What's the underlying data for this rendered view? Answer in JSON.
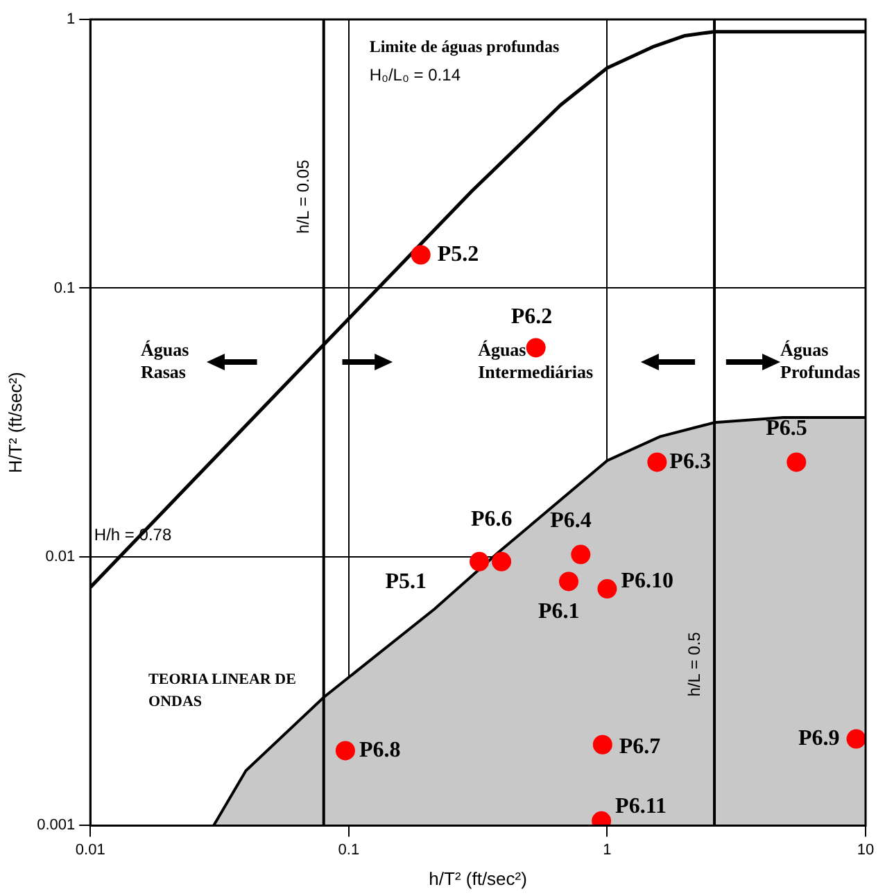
{
  "chart_data": {
    "type": "scatter",
    "xlabel": "h/T² (ft/sec²)",
    "ylabel": "H/T² (ft/sec²)",
    "xlim": [
      0.01,
      10
    ],
    "ylim": [
      0.001,
      1
    ],
    "xticks": [
      0.01,
      0.1,
      1,
      10
    ],
    "yticks": [
      0.001,
      0.01,
      0.1,
      1
    ],
    "log": "xy",
    "grid": true,
    "legend": false,
    "series": [
      {
        "type": "area",
        "marker": "none",
        "color": "#c8c8c8",
        "x": [
          0.03,
          0.04,
          0.08,
          0.215,
          0.38,
          1.0,
          1.6,
          2.6,
          4.8,
          10
        ],
        "values": [
          0.001,
          0.0016,
          0.003,
          0.0064,
          0.0104,
          0.0228,
          0.028,
          0.0316,
          0.033,
          0.033
        ]
      },
      {
        "type": "line",
        "marker": "none",
        "color": "#000000",
        "x": [
          0.01,
          0.1,
          0.3,
          0.5,
          0.66,
          1.0,
          1.5,
          2.0,
          2.6,
          10
        ],
        "values": [
          0.0077,
          0.077,
          0.23,
          0.37,
          0.48,
          0.66,
          0.79,
          0.87,
          0.9,
          0.9
        ]
      },
      {
        "type": "line",
        "marker": "none",
        "name": "h/L = 0.05",
        "color": "#000000",
        "x": [
          0.08,
          0.08
        ],
        "values": [
          0.001,
          1
        ]
      },
      {
        "type": "line",
        "marker": "none",
        "name": "h/L = 0.5",
        "color": "#000000",
        "x": [
          2.6,
          2.6
        ],
        "values": [
          0.001,
          1
        ]
      },
      {
        "marker": "circle",
        "color": "#ff0000",
        "x": [
          0.19,
          0.53,
          1.56,
          5.4,
          0.39,
          0.32,
          0.79,
          0.71,
          1.0,
          0.96,
          0.95,
          0.097,
          9.2
        ],
        "values": [
          0.133,
          0.06,
          0.0225,
          0.0225,
          0.0096,
          0.0096,
          0.0102,
          0.0081,
          0.0076,
          0.002,
          0.00104,
          0.0019,
          0.0021
        ]
      }
    ],
    "annotations": [
      {
        "text": "P5.2",
        "x": 0.19,
        "y": 0.133
      },
      {
        "text": "P6.2",
        "x": 0.53,
        "y": 0.06
      },
      {
        "text": "P6.3",
        "x": 1.56,
        "y": 0.0225
      },
      {
        "text": "P6.5",
        "x": 5.4,
        "y": 0.0225
      },
      {
        "text": "P6.6",
        "x": 0.39,
        "y": 0.0096
      },
      {
        "text": "P5.1",
        "x": 0.32,
        "y": 0.0096
      },
      {
        "text": "P6.4",
        "x": 0.79,
        "y": 0.0102
      },
      {
        "text": "P6.1",
        "x": 0.71,
        "y": 0.0081
      },
      {
        "text": "P6.10",
        "x": 1.0,
        "y": 0.0076
      },
      {
        "text": "P6.7",
        "x": 0.96,
        "y": 0.002
      },
      {
        "text": "P6.11",
        "x": 0.95,
        "y": 0.00104
      },
      {
        "text": "P6.8",
        "x": 0.097,
        "y": 0.0019
      },
      {
        "text": "P6.9",
        "x": 9.2,
        "y": 0.0021
      },
      "Limite de águas profundas",
      "H₀/L₀ = 0.14",
      "H/h = 0.78",
      "Águas Rasas",
      "Águas Intermediárias",
      "Águas Profundas",
      "TEORIA LINEAR DE ONDAS"
    ]
  }
}
